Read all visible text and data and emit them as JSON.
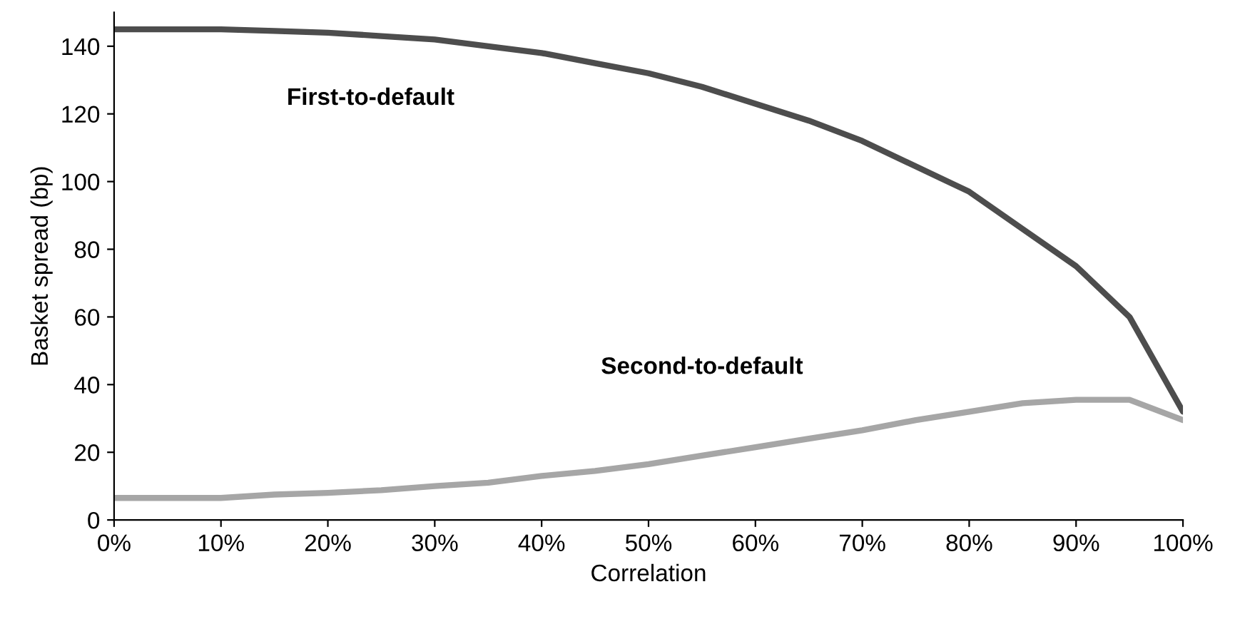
{
  "chart_data": {
    "type": "line",
    "xlabel": "Correlation",
    "ylabel": "Basket spread (bp)",
    "x": [
      0,
      5,
      10,
      15,
      20,
      25,
      30,
      35,
      40,
      45,
      50,
      55,
      60,
      65,
      70,
      75,
      80,
      85,
      90,
      95,
      100
    ],
    "series": [
      {
        "name": "First-to-default",
        "color": "#4d4d4d",
        "values": [
          145,
          145,
          145,
          144.5,
          144,
          143,
          142,
          140,
          138,
          135,
          132,
          128,
          123,
          118,
          112,
          104.5,
          97,
          86,
          75,
          60,
          32
        ]
      },
      {
        "name": "Second-to-default",
        "color": "#a6a6a6",
        "values": [
          6.5,
          6.5,
          6.5,
          7.5,
          8,
          8.8,
          10,
          11,
          13,
          14.5,
          16.5,
          19,
          21.5,
          24,
          26.5,
          29.5,
          32,
          34.5,
          35.5,
          35.5,
          29.5
        ]
      }
    ],
    "xlim": [
      0,
      100
    ],
    "ylim": [
      0,
      150
    ],
    "xticks": [
      {
        "value": 0,
        "label": "0%"
      },
      {
        "value": 10,
        "label": "10%"
      },
      {
        "value": 20,
        "label": "20%"
      },
      {
        "value": 30,
        "label": "30%"
      },
      {
        "value": 40,
        "label": "40%"
      },
      {
        "value": 50,
        "label": "50%"
      },
      {
        "value": 60,
        "label": "60%"
      },
      {
        "value": 70,
        "label": "70%"
      },
      {
        "value": 80,
        "label": "80%"
      },
      {
        "value": 90,
        "label": "90%"
      },
      {
        "value": 100,
        "label": "100%"
      }
    ],
    "yticks": [
      0,
      20,
      40,
      60,
      80,
      100,
      120,
      140
    ],
    "grid": false,
    "legend": false,
    "marker": "none",
    "line_style": "solid"
  }
}
